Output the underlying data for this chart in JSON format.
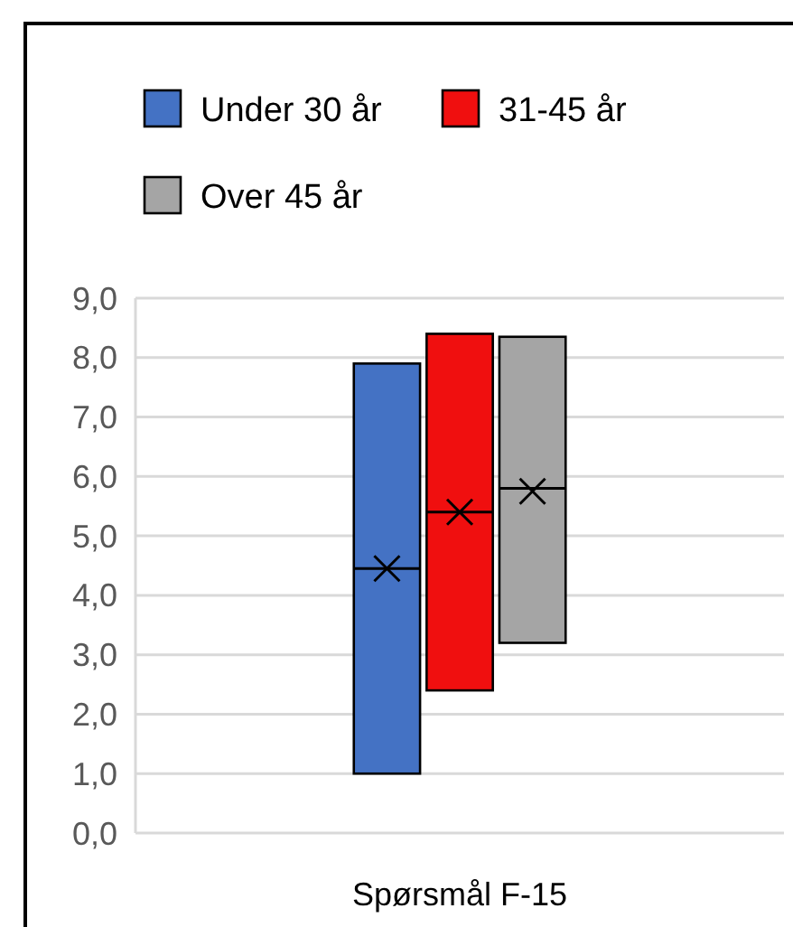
{
  "chart_data": {
    "type": "box",
    "categories": [
      null,
      null,
      null,
      null,
      "Spørsmål F-15",
      null,
      null,
      null,
      null
    ],
    "ylim": [
      0,
      9
    ],
    "yticks": [
      {
        "value": 0,
        "label": "0,0"
      },
      {
        "value": 1,
        "label": "1,0"
      },
      {
        "value": 2,
        "label": "2,0"
      },
      {
        "value": 3,
        "label": "3,0"
      },
      {
        "value": 4,
        "label": "4,0"
      },
      {
        "value": 5,
        "label": "5,0"
      },
      {
        "value": 6,
        "label": "6,0"
      },
      {
        "value": 7,
        "label": "7,0"
      },
      {
        "value": 8,
        "label": "8,0"
      },
      {
        "value": 9,
        "label": "9,0"
      }
    ],
    "grid": "y",
    "legend": "top",
    "series": [
      {
        "name": "Under 30 år",
        "color": "#4472c4",
        "boxes": [
          null,
          null,
          null,
          {
            "low": 1.0,
            "q1": 1.0,
            "median": 4.45,
            "q3": 7.9,
            "high": 7.9,
            "mean": 4.45
          },
          null,
          null,
          null,
          null,
          null
        ]
      },
      {
        "name": "31-45 år",
        "color": "#f00f0f",
        "boxes": [
          null,
          null,
          null,
          null,
          {
            "low": 2.4,
            "q1": 2.4,
            "median": 5.4,
            "q3": 8.4,
            "high": 8.4,
            "mean": 5.4
          },
          null,
          null,
          null,
          null
        ]
      },
      {
        "name": "Over 45 år",
        "color": "#a5a5a5",
        "boxes": [
          null,
          null,
          null,
          null,
          null,
          {
            "low": 3.2,
            "q1": 3.2,
            "median": 5.8,
            "q3": 8.35,
            "high": 8.35,
            "mean": 5.75
          },
          null,
          null,
          null
        ]
      }
    ]
  }
}
